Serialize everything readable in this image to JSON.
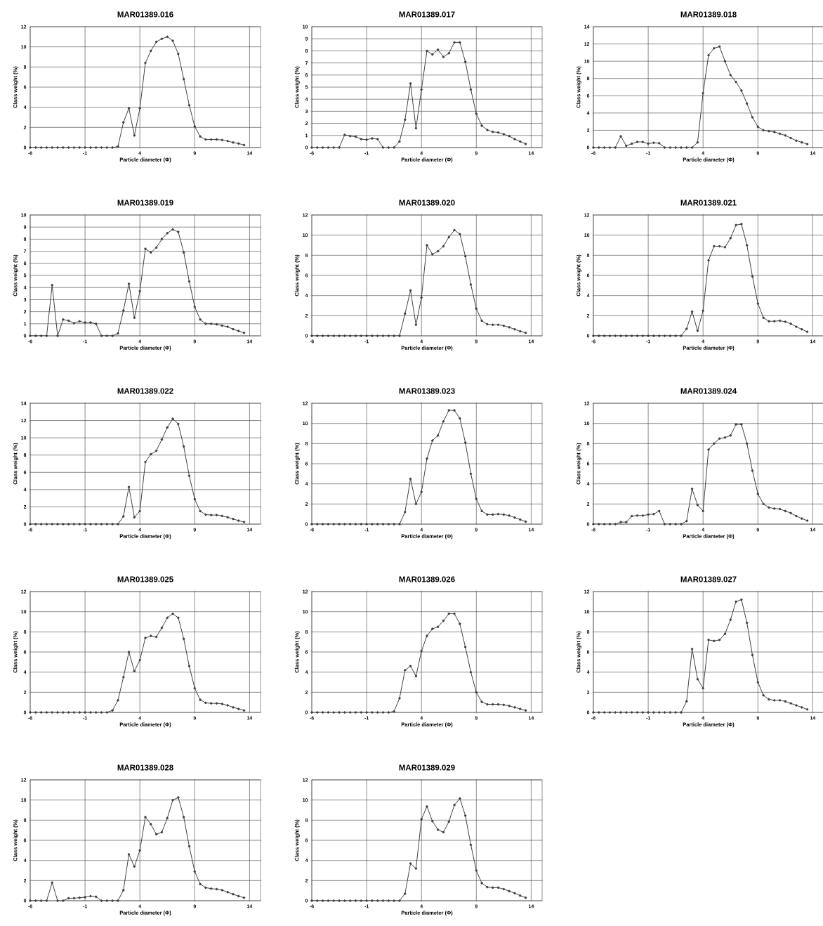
{
  "chart_data": [
    {
      "type": "line",
      "title": "MAR01389.016",
      "xlabel": "Particle diameter (Φ)",
      "ylabel": "Class weight (%)",
      "color": "#404040",
      "marker": "circle",
      "grid": true,
      "xlim": [
        -6,
        15
      ],
      "xticks": [
        -6,
        -1,
        4,
        9,
        14
      ],
      "ylim": [
        0,
        12
      ],
      "yticks": [
        0,
        2,
        4,
        6,
        8,
        10,
        12
      ],
      "x": [
        -6,
        -5.5,
        -5,
        -4.5,
        -4,
        -3.5,
        -3,
        -2.5,
        -2,
        -1.5,
        -1,
        -0.5,
        0,
        0.5,
        1,
        1.5,
        2,
        2.5,
        3,
        3.5,
        4,
        4.5,
        5,
        5.5,
        6,
        6.5,
        7,
        7.5,
        8,
        8.5,
        9,
        9.5,
        10,
        10.5,
        11,
        11.5,
        12,
        12.5,
        13,
        13.5
      ],
      "values": [
        0,
        0,
        0,
        0,
        0,
        0,
        0,
        0,
        0,
        0,
        0,
        0,
        0,
        0,
        0,
        0,
        0.1,
        2.5,
        3.9,
        1.2,
        3.9,
        8.4,
        9.6,
        10.5,
        10.8,
        11.0,
        10.6,
        9.3,
        6.8,
        4.2,
        2.1,
        1.1,
        0.8,
        0.8,
        0.8,
        0.75,
        0.65,
        0.5,
        0.4,
        0.25
      ]
    },
    {
      "type": "line",
      "title": "MAR01389.017",
      "xlabel": "Particle diameter (Φ)",
      "ylabel": "Class weight (%)",
      "color": "#404040",
      "marker": "circle",
      "grid": true,
      "xlim": [
        -6,
        15
      ],
      "xticks": [
        -6,
        -1,
        4,
        9,
        14
      ],
      "ylim": [
        0,
        10
      ],
      "yticks": [
        0,
        1,
        2,
        3,
        4,
        5,
        6,
        7,
        8,
        9,
        10
      ],
      "x": [
        -6,
        -5.5,
        -5,
        -4.5,
        -4,
        -3.5,
        -3,
        -2.5,
        -2,
        -1.5,
        -1,
        -0.5,
        0,
        0.5,
        1,
        1.5,
        2,
        2.5,
        3,
        3.5,
        4,
        4.5,
        5,
        5.5,
        6,
        6.5,
        7,
        7.5,
        8,
        8.5,
        9,
        9.5,
        10,
        10.5,
        11,
        11.5,
        12,
        12.5,
        13,
        13.5
      ],
      "values": [
        0,
        0,
        0,
        0,
        0,
        0,
        1.05,
        0.95,
        0.9,
        0.7,
        0.65,
        0.75,
        0.7,
        0,
        0,
        0,
        0.5,
        2.3,
        5.3,
        1.6,
        4.8,
        8.0,
        7.7,
        8.1,
        7.5,
        7.8,
        8.7,
        8.7,
        7.1,
        4.8,
        2.8,
        1.8,
        1.45,
        1.3,
        1.25,
        1.1,
        0.95,
        0.7,
        0.5,
        0.3
      ]
    },
    {
      "type": "line",
      "title": "MAR01389.018",
      "xlabel": "Particle diameter (Φ)",
      "ylabel": "Class weight (%)",
      "color": "#404040",
      "marker": "circle",
      "grid": true,
      "xlim": [
        -6,
        15
      ],
      "xticks": [
        -6,
        -1,
        4,
        9,
        14
      ],
      "ylim": [
        0,
        14
      ],
      "yticks": [
        0,
        2,
        4,
        6,
        8,
        10,
        12,
        14
      ],
      "x": [
        -6,
        -5.5,
        -5,
        -4.5,
        -4,
        -3.5,
        -3,
        -2.5,
        -2,
        -1.5,
        -1,
        -0.5,
        0,
        0.5,
        1,
        1.5,
        2,
        2.5,
        3,
        3.5,
        4,
        4.5,
        5,
        5.5,
        6,
        6.5,
        7,
        7.5,
        8,
        8.5,
        9,
        9.5,
        10,
        10.5,
        11,
        11.5,
        12,
        12.5,
        13,
        13.5
      ],
      "values": [
        0,
        0,
        0,
        0,
        0,
        1.3,
        0.2,
        0.45,
        0.65,
        0.65,
        0.45,
        0.55,
        0.5,
        0,
        0,
        0,
        0,
        0,
        0,
        0.6,
        6.3,
        10.7,
        11.5,
        11.7,
        10.0,
        8.4,
        7.6,
        6.6,
        5.1,
        3.5,
        2.4,
        2.0,
        1.9,
        1.8,
        1.6,
        1.4,
        1.1,
        0.8,
        0.6,
        0.4
      ]
    },
    {
      "type": "line",
      "title": "MAR01389.019",
      "xlabel": "Particle diameter (Φ)",
      "ylabel": "Class weight (%)",
      "color": "#404040",
      "marker": "circle",
      "grid": true,
      "xlim": [
        -6,
        15
      ],
      "xticks": [
        -6,
        -1,
        4,
        9,
        14
      ],
      "ylim": [
        0,
        10
      ],
      "yticks": [
        0,
        1,
        2,
        3,
        4,
        5,
        6,
        7,
        8,
        9,
        10
      ],
      "x": [
        -6,
        -5.5,
        -5,
        -4.5,
        -4,
        -3.5,
        -3,
        -2.5,
        -2,
        -1.5,
        -1,
        -0.5,
        0,
        0.5,
        1,
        1.5,
        2,
        2.5,
        3,
        3.5,
        4,
        4.5,
        5,
        5.5,
        6,
        6.5,
        7,
        7.5,
        8,
        8.5,
        9,
        9.5,
        10,
        10.5,
        11,
        11.5,
        12,
        12.5,
        13,
        13.5
      ],
      "values": [
        0,
        0,
        0,
        0,
        4.2,
        0,
        1.35,
        1.25,
        1.05,
        1.2,
        1.1,
        1.1,
        1.0,
        0,
        0,
        0,
        0.2,
        2.1,
        4.3,
        1.5,
        3.7,
        7.2,
        6.9,
        7.3,
        8.0,
        8.5,
        8.8,
        8.6,
        6.9,
        4.5,
        2.4,
        1.35,
        1.0,
        1.0,
        0.95,
        0.85,
        0.75,
        0.55,
        0.4,
        0.25
      ]
    },
    {
      "type": "line",
      "title": "MAR01389.020",
      "xlabel": "Particle diameter (Φ)",
      "ylabel": "Class weight (%)",
      "color": "#404040",
      "marker": "circle",
      "grid": true,
      "xlim": [
        -6,
        15
      ],
      "xticks": [
        -6,
        -1,
        4,
        9,
        14
      ],
      "ylim": [
        0,
        12
      ],
      "yticks": [
        0,
        2,
        4,
        6,
        8,
        10,
        12
      ],
      "x": [
        -6,
        -5.5,
        -5,
        -4.5,
        -4,
        -3.5,
        -3,
        -2.5,
        -2,
        -1.5,
        -1,
        -0.5,
        0,
        0.5,
        1,
        1.5,
        2,
        2.5,
        3,
        3.5,
        4,
        4.5,
        5,
        5.5,
        6,
        6.5,
        7,
        7.5,
        8,
        8.5,
        9,
        9.5,
        10,
        10.5,
        11,
        11.5,
        12,
        12.5,
        13,
        13.5
      ],
      "values": [
        0,
        0,
        0,
        0,
        0,
        0,
        0,
        0,
        0,
        0,
        0,
        0,
        0,
        0,
        0,
        0,
        0,
        2.2,
        4.5,
        1.1,
        3.8,
        9.0,
        8.1,
        8.4,
        8.9,
        9.8,
        10.5,
        10.1,
        7.9,
        5.1,
        2.7,
        1.5,
        1.15,
        1.1,
        1.1,
        1.0,
        0.85,
        0.65,
        0.45,
        0.3
      ]
    },
    {
      "type": "line",
      "title": "MAR01389.021",
      "xlabel": "Particle diameter (Φ)",
      "ylabel": "Class weight (%)",
      "color": "#404040",
      "marker": "circle",
      "grid": true,
      "xlim": [
        -6,
        15
      ],
      "xticks": [
        -6,
        -1,
        4,
        9,
        14
      ],
      "ylim": [
        0,
        12
      ],
      "yticks": [
        0,
        2,
        4,
        6,
        8,
        10,
        12
      ],
      "x": [
        -6,
        -5.5,
        -5,
        -4.5,
        -4,
        -3.5,
        -3,
        -2.5,
        -2,
        -1.5,
        -1,
        -0.5,
        0,
        0.5,
        1,
        1.5,
        2,
        2.5,
        3,
        3.5,
        4,
        4.5,
        5,
        5.5,
        6,
        6.5,
        7,
        7.5,
        8,
        8.5,
        9,
        9.5,
        10,
        10.5,
        11,
        11.5,
        12,
        12.5,
        13,
        13.5
      ],
      "values": [
        0,
        0,
        0,
        0,
        0,
        0,
        0,
        0,
        0,
        0,
        0,
        0,
        0,
        0,
        0,
        0,
        0,
        0.7,
        2.4,
        0.5,
        2.5,
        7.5,
        8.9,
        8.9,
        8.8,
        9.7,
        11.0,
        11.1,
        9.0,
        5.9,
        3.2,
        1.8,
        1.45,
        1.45,
        1.5,
        1.4,
        1.2,
        0.9,
        0.65,
        0.4
      ]
    },
    {
      "type": "line",
      "title": "MAR01389.022",
      "xlabel": "Particle diameter (Φ)",
      "ylabel": "Class weight (%)",
      "color": "#404040",
      "marker": "circle",
      "grid": true,
      "xlim": [
        -6,
        15
      ],
      "xticks": [
        -6,
        -1,
        4,
        9,
        14
      ],
      "ylim": [
        0,
        14
      ],
      "yticks": [
        0,
        2,
        4,
        6,
        8,
        10,
        12,
        14
      ],
      "x": [
        -6,
        -5.5,
        -5,
        -4.5,
        -4,
        -3.5,
        -3,
        -2.5,
        -2,
        -1.5,
        -1,
        -0.5,
        0,
        0.5,
        1,
        1.5,
        2,
        2.5,
        3,
        3.5,
        4,
        4.5,
        5,
        5.5,
        6,
        6.5,
        7,
        7.5,
        8,
        8.5,
        9,
        9.5,
        10,
        10.5,
        11,
        11.5,
        12,
        12.5,
        13,
        13.5
      ],
      "values": [
        0,
        0,
        0,
        0,
        0,
        0,
        0,
        0,
        0,
        0,
        0,
        0,
        0,
        0,
        0,
        0,
        0,
        0.9,
        4.3,
        0.8,
        1.5,
        7.2,
        8.1,
        8.5,
        9.8,
        11.2,
        12.2,
        11.6,
        9.0,
        5.6,
        2.9,
        1.5,
        1.1,
        1.05,
        1.05,
        0.95,
        0.8,
        0.6,
        0.4,
        0.25
      ]
    },
    {
      "type": "line",
      "title": "MAR01389.023",
      "xlabel": "Particle diameter (Φ)",
      "ylabel": "Class weight (%)",
      "color": "#404040",
      "marker": "circle",
      "grid": true,
      "xlim": [
        -6,
        15
      ],
      "xticks": [
        -6,
        -1,
        4,
        9,
        14
      ],
      "ylim": [
        0,
        12
      ],
      "yticks": [
        0,
        2,
        4,
        6,
        8,
        10,
        12
      ],
      "x": [
        -6,
        -5.5,
        -5,
        -4.5,
        -4,
        -3.5,
        -3,
        -2.5,
        -2,
        -1.5,
        -1,
        -0.5,
        0,
        0.5,
        1,
        1.5,
        2,
        2.5,
        3,
        3.5,
        4,
        4.5,
        5,
        5.5,
        6,
        6.5,
        7,
        7.5,
        8,
        8.5,
        9,
        9.5,
        10,
        10.5,
        11,
        11.5,
        12,
        12.5,
        13,
        13.5
      ],
      "values": [
        0,
        0,
        0,
        0,
        0,
        0,
        0,
        0,
        0,
        0,
        0,
        0,
        0,
        0,
        0,
        0,
        0,
        1.2,
        4.5,
        2.0,
        3.2,
        6.5,
        8.3,
        8.8,
        10.2,
        11.3,
        11.3,
        10.5,
        8.1,
        5.0,
        2.5,
        1.3,
        0.95,
        0.95,
        1.0,
        0.95,
        0.85,
        0.65,
        0.45,
        0.25
      ]
    },
    {
      "type": "line",
      "title": "MAR01389.024",
      "xlabel": "Particle diameter (Φ)",
      "ylabel": "Class weight (%)",
      "color": "#404040",
      "marker": "circle",
      "grid": true,
      "xlim": [
        -6,
        15
      ],
      "xticks": [
        -6,
        -1,
        4,
        9,
        14
      ],
      "ylim": [
        0,
        12
      ],
      "yticks": [
        0,
        2,
        4,
        6,
        8,
        10,
        12
      ],
      "x": [
        -6,
        -5.5,
        -5,
        -4.5,
        -4,
        -3.5,
        -3,
        -2.5,
        -2,
        -1.5,
        -1,
        -0.5,
        0,
        0.5,
        1,
        1.5,
        2,
        2.5,
        3,
        3.5,
        4,
        4.5,
        5,
        5.5,
        6,
        6.5,
        7,
        7.5,
        8,
        8.5,
        9,
        9.5,
        10,
        10.5,
        11,
        11.5,
        12,
        12.5,
        13,
        13.5
      ],
      "values": [
        0,
        0,
        0,
        0,
        0,
        0.2,
        0.2,
        0.8,
        0.85,
        0.85,
        0.95,
        1.0,
        1.3,
        0,
        0,
        0,
        0,
        0.3,
        3.5,
        1.9,
        1.3,
        7.4,
        8.0,
        8.5,
        8.6,
        8.8,
        9.9,
        9.9,
        8.0,
        5.3,
        3.0,
        2.0,
        1.65,
        1.55,
        1.5,
        1.3,
        1.1,
        0.8,
        0.55,
        0.35
      ]
    },
    {
      "type": "line",
      "title": "MAR01389.025",
      "xlabel": "Particle diameter (Φ)",
      "ylabel": "Class weight (%)",
      "color": "#404040",
      "marker": "circle",
      "grid": true,
      "xlim": [
        -6,
        15
      ],
      "xticks": [
        -6,
        -1,
        4,
        9,
        14
      ],
      "ylim": [
        0,
        12
      ],
      "yticks": [
        0,
        2,
        4,
        6,
        8,
        10,
        12
      ],
      "x": [
        -6,
        -5.5,
        -5,
        -4.5,
        -4,
        -3.5,
        -3,
        -2.5,
        -2,
        -1.5,
        -1,
        -0.5,
        0,
        0.5,
        1,
        1.5,
        2,
        2.5,
        3,
        3.5,
        4,
        4.5,
        5,
        5.5,
        6,
        6.5,
        7,
        7.5,
        8,
        8.5,
        9,
        9.5,
        10,
        10.5,
        11,
        11.5,
        12,
        12.5,
        13,
        13.5
      ],
      "values": [
        0,
        0,
        0,
        0,
        0,
        0,
        0,
        0,
        0,
        0,
        0,
        0,
        0,
        0,
        0,
        0.2,
        1.2,
        3.5,
        6.0,
        4.1,
        5.2,
        7.4,
        7.6,
        7.5,
        8.4,
        9.4,
        9.8,
        9.4,
        7.3,
        4.6,
        2.4,
        1.25,
        0.95,
        0.9,
        0.9,
        0.85,
        0.7,
        0.5,
        0.35,
        0.2
      ]
    },
    {
      "type": "line",
      "title": "MAR01389.026",
      "xlabel": "Particle diameter (Φ)",
      "ylabel": "Class weight (%)",
      "color": "#404040",
      "marker": "circle",
      "grid": true,
      "xlim": [
        -6,
        15
      ],
      "xticks": [
        -6,
        -1,
        4,
        9,
        14
      ],
      "ylim": [
        0,
        12
      ],
      "yticks": [
        0,
        2,
        4,
        6,
        8,
        10,
        12
      ],
      "x": [
        -6,
        -5.5,
        -5,
        -4.5,
        -4,
        -3.5,
        -3,
        -2.5,
        -2,
        -1.5,
        -1,
        -0.5,
        0,
        0.5,
        1,
        1.5,
        2,
        2.5,
        3,
        3.5,
        4,
        4.5,
        5,
        5.5,
        6,
        6.5,
        7,
        7.5,
        8,
        8.5,
        9,
        9.5,
        10,
        10.5,
        11,
        11.5,
        12,
        12.5,
        13,
        13.5
      ],
      "values": [
        0,
        0,
        0,
        0,
        0,
        0,
        0,
        0,
        0,
        0,
        0,
        0,
        0,
        0,
        0,
        0.1,
        1.4,
        4.2,
        4.6,
        3.6,
        6.1,
        7.6,
        8.3,
        8.5,
        9.1,
        9.8,
        9.8,
        8.8,
        6.5,
        4.0,
        2.0,
        1.05,
        0.8,
        0.8,
        0.8,
        0.75,
        0.65,
        0.5,
        0.35,
        0.2
      ]
    },
    {
      "type": "line",
      "title": "MAR01389.027",
      "xlabel": "Particle diameter (Φ)",
      "ylabel": "Class weight (%)",
      "color": "#404040",
      "marker": "circle",
      "grid": true,
      "xlim": [
        -6,
        15
      ],
      "xticks": [
        -6,
        -1,
        4,
        9,
        14
      ],
      "ylim": [
        0,
        12
      ],
      "yticks": [
        0,
        2,
        4,
        6,
        8,
        10,
        12
      ],
      "x": [
        -6,
        -5.5,
        -5,
        -4.5,
        -4,
        -3.5,
        -3,
        -2.5,
        -2,
        -1.5,
        -1,
        -0.5,
        0,
        0.5,
        1,
        1.5,
        2,
        2.5,
        3,
        3.5,
        4,
        4.5,
        5,
        5.5,
        6,
        6.5,
        7,
        7.5,
        8,
        8.5,
        9,
        9.5,
        10,
        10.5,
        11,
        11.5,
        12,
        12.5,
        13,
        13.5
      ],
      "values": [
        0,
        0,
        0,
        0,
        0,
        0,
        0,
        0,
        0,
        0,
        0,
        0,
        0,
        0,
        0,
        0,
        0,
        1.1,
        6.3,
        3.3,
        2.4,
        7.2,
        7.1,
        7.2,
        7.8,
        9.2,
        11.0,
        11.2,
        8.9,
        5.7,
        3.0,
        1.7,
        1.3,
        1.2,
        1.2,
        1.1,
        0.9,
        0.7,
        0.5,
        0.3
      ]
    },
    {
      "type": "line",
      "title": "MAR01389.028",
      "xlabel": "Particle diameter (Φ)",
      "ylabel": "Class weight (%)",
      "color": "#404040",
      "marker": "circle",
      "grid": true,
      "xlim": [
        -6,
        15
      ],
      "xticks": [
        -6,
        -1,
        4,
        9,
        14
      ],
      "ylim": [
        0,
        12
      ],
      "yticks": [
        0,
        2,
        4,
        6,
        8,
        10,
        12
      ],
      "x": [
        -6,
        -5.5,
        -5,
        -4.5,
        -4,
        -3.5,
        -3,
        -2.5,
        -2,
        -1.5,
        -1,
        -0.5,
        0,
        0.5,
        1,
        1.5,
        2,
        2.5,
        3,
        3.5,
        4,
        4.5,
        5,
        5.5,
        6,
        6.5,
        7,
        7.5,
        8,
        8.5,
        9,
        9.5,
        10,
        10.5,
        11,
        11.5,
        12,
        12.5,
        13,
        13.5
      ],
      "values": [
        0,
        0,
        0,
        0,
        1.8,
        0,
        0,
        0.25,
        0.25,
        0.3,
        0.35,
        0.45,
        0.4,
        0,
        0,
        0,
        0,
        1.05,
        4.6,
        3.4,
        5.0,
        8.3,
        7.6,
        6.6,
        6.8,
        8.2,
        10.0,
        10.25,
        8.3,
        5.4,
        2.9,
        1.65,
        1.3,
        1.2,
        1.15,
        1.05,
        0.85,
        0.65,
        0.45,
        0.3
      ]
    },
    {
      "type": "line",
      "title": "MAR01389.029",
      "xlabel": "Particle diameter (Φ)",
      "ylabel": "Class weight (%)",
      "color": "#404040",
      "marker": "circle",
      "grid": true,
      "xlim": [
        -6,
        15
      ],
      "xticks": [
        -6,
        -1,
        4,
        9,
        14
      ],
      "ylim": [
        0,
        12
      ],
      "yticks": [
        0,
        2,
        4,
        6,
        8,
        10,
        12
      ],
      "x": [
        -6,
        -5.5,
        -5,
        -4.5,
        -4,
        -3.5,
        -3,
        -2.5,
        -2,
        -1.5,
        -1,
        -0.5,
        0,
        0.5,
        1,
        1.5,
        2,
        2.5,
        3,
        3.5,
        4,
        4.5,
        5,
        5.5,
        6,
        6.5,
        7,
        7.5,
        8,
        8.5,
        9,
        9.5,
        10,
        10.5,
        11,
        11.5,
        12,
        12.5,
        13,
        13.5
      ],
      "values": [
        0,
        0,
        0,
        0,
        0,
        0,
        0,
        0,
        0,
        0,
        0,
        0,
        0,
        0,
        0,
        0,
        0,
        0.7,
        3.7,
        3.2,
        8.1,
        9.35,
        7.9,
        7.05,
        6.8,
        7.85,
        9.5,
        10.15,
        8.45,
        5.55,
        3.0,
        1.75,
        1.35,
        1.3,
        1.3,
        1.15,
        0.95,
        0.75,
        0.5,
        0.3
      ]
    }
  ]
}
